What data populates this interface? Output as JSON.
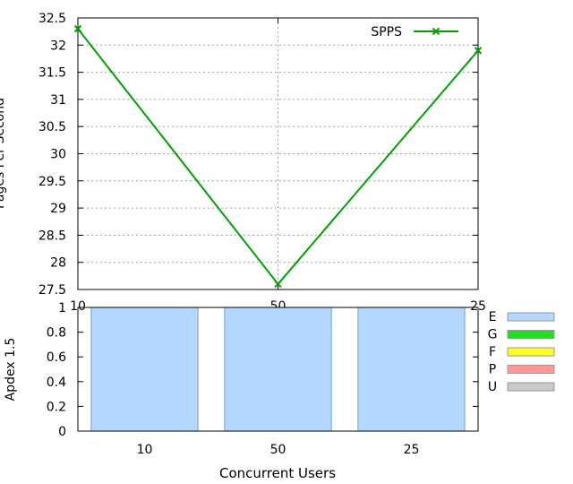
{
  "charts": {
    "top": {
      "type": "line",
      "title": "",
      "xlabel": "",
      "ylabel": "Pages Per Second",
      "ylim": [
        27.5,
        32.5
      ],
      "yticks": [
        27.5,
        28,
        28.5,
        29,
        29.5,
        30,
        30.5,
        31,
        31.5,
        32,
        32.5
      ],
      "x": [
        "10",
        "50",
        "25"
      ],
      "grid": true,
      "legend": "top-right",
      "series": [
        {
          "name": "SPPS",
          "color": "#00a000",
          "marker": "x",
          "values": [
            32.3,
            27.6,
            31.9
          ]
        }
      ]
    },
    "bottom": {
      "type": "bar",
      "title": "",
      "xlabel": "Concurrent Users",
      "ylabel": "Apdex 1.5",
      "ylim": [
        0,
        1
      ],
      "yticks": [
        0,
        0.2,
        0.4,
        0.6,
        0.8,
        1
      ],
      "categories": [
        "10",
        "50",
        "25"
      ],
      "stacked": true,
      "legend": "right",
      "series": [
        {
          "name": "E",
          "color": "#b3d7ff",
          "values": [
            1,
            1,
            1
          ]
        },
        {
          "name": "G",
          "color": "#22dd22",
          "values": [
            0,
            0,
            0
          ]
        },
        {
          "name": "F",
          "color": "#ffff22",
          "values": [
            0,
            0,
            0
          ]
        },
        {
          "name": "P",
          "color": "#ff9999",
          "values": [
            0,
            0,
            0
          ]
        },
        {
          "name": "U",
          "color": "#c8c8c8",
          "values": [
            0,
            0,
            0
          ]
        }
      ]
    }
  }
}
